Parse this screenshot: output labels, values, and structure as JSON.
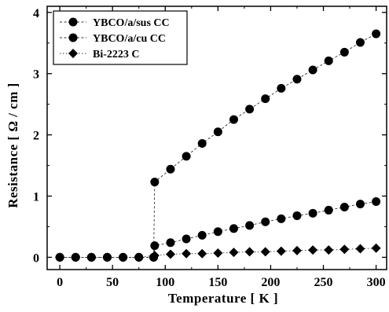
{
  "chart_data": {
    "type": "scatter",
    "xlabel": "Temperature [ K ]",
    "ylabel": "Resistance [ Ω / cm ]",
    "xlim": [
      -12,
      310
    ],
    "ylim": [
      -0.2,
      4.1
    ],
    "x_ticks": [
      0,
      50,
      100,
      150,
      200,
      250,
      300
    ],
    "x_tick_labels": [
      "0",
      "50",
      "100",
      "150",
      "200",
      "250",
      "300"
    ],
    "y_ticks": [
      0,
      1,
      2,
      3,
      4
    ],
    "y_tick_labels": [
      "0",
      "1",
      "2",
      "3",
      "4"
    ],
    "legend_position": "top-left",
    "series": [
      {
        "name": "YBCO/a/sus CC",
        "marker": "circle",
        "color": "#000000",
        "line": "dashed",
        "x": [
          0,
          15,
          30,
          45,
          60,
          75,
          89,
          90,
          105,
          120,
          135,
          150,
          165,
          180,
          195,
          210,
          225,
          240,
          255,
          270,
          285,
          300
        ],
        "y": [
          0.0,
          0.0,
          0.0,
          0.0,
          0.0,
          0.0,
          0.0,
          1.23,
          1.44,
          1.65,
          1.86,
          2.05,
          2.25,
          2.42,
          2.59,
          2.76,
          2.91,
          3.06,
          3.21,
          3.35,
          3.51,
          3.65
        ]
      },
      {
        "name": "YBCO/a/cu CC",
        "marker": "circle",
        "color": "#000000",
        "line": "dashed",
        "x": [
          0,
          15,
          30,
          45,
          60,
          75,
          89,
          90,
          105,
          120,
          135,
          150,
          165,
          180,
          195,
          210,
          225,
          240,
          255,
          270,
          285,
          300
        ],
        "y": [
          0.0,
          0.0,
          0.0,
          0.0,
          0.0,
          0.0,
          0.0,
          0.19,
          0.24,
          0.3,
          0.36,
          0.42,
          0.47,
          0.52,
          0.58,
          0.63,
          0.68,
          0.72,
          0.77,
          0.82,
          0.87,
          0.91
        ]
      },
      {
        "name": "Bi-2223 C",
        "marker": "diamond",
        "color": "#000000",
        "line": "dotted",
        "x": [
          0,
          15,
          30,
          45,
          60,
          75,
          90,
          105,
          120,
          135,
          150,
          165,
          180,
          195,
          210,
          225,
          240,
          255,
          270,
          285,
          300
        ],
        "y": [
          0.0,
          0.0,
          0.0,
          0.0,
          0.0,
          0.0,
          0.03,
          0.05,
          0.06,
          0.06,
          0.07,
          0.08,
          0.09,
          0.09,
          0.1,
          0.11,
          0.12,
          0.12,
          0.13,
          0.14,
          0.15
        ]
      }
    ]
  }
}
